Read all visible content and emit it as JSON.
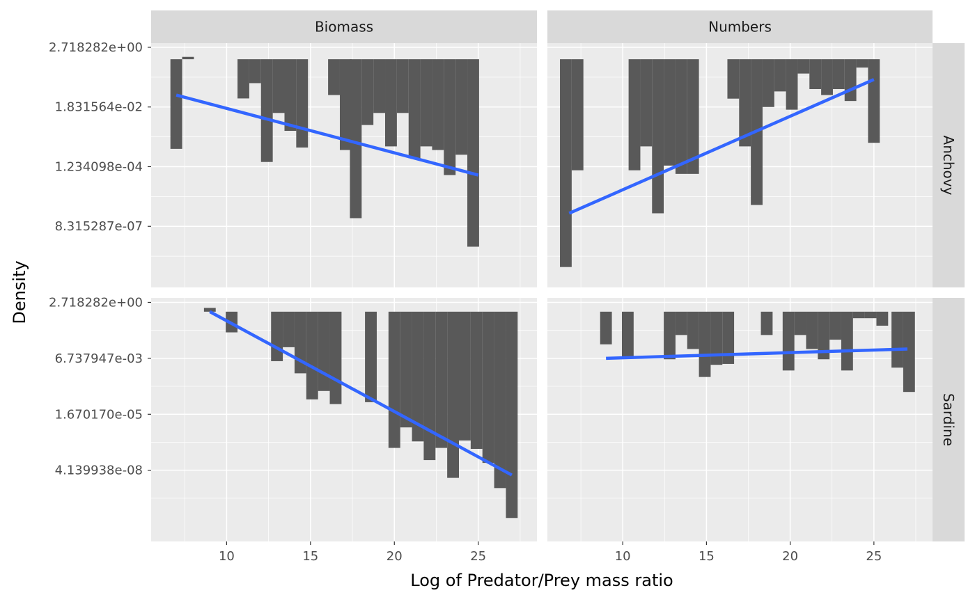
{
  "colors": {
    "panel_bg": "#ebebeb",
    "strip_bg": "#d9d9d9",
    "grid_major": "#ffffff",
    "bar": "#595959",
    "fit_line": "#3366ff",
    "tick": "#333333"
  },
  "chart_data": {
    "type": "bar",
    "layout": "facet_grid",
    "xlabel": "Log of Predator/Prey mass ratio",
    "ylabel": "Density",
    "y_scale": "log",
    "x_ticks": [
      10,
      15,
      20,
      25
    ],
    "x_tick_labels": [
      "10",
      "15",
      "20",
      "25"
    ],
    "xlim": [
      5.5,
      28.5
    ],
    "column_facets": [
      "Biomass",
      "Numbers"
    ],
    "row_facets": [
      "Anchovy",
      "Sardine"
    ],
    "bar_width": 0.7,
    "bar_baseline": 1,
    "panels": [
      {
        "column": "Biomass",
        "row": "Anchovy",
        "y_ticks": [
          2.718282,
          0.01831564,
          0.0001234098,
          8.315287e-07
        ],
        "y_tick_labels": [
          "2.718282e+00",
          "1.831564e-02",
          "1.234098e-04",
          "8.315287e-07"
        ],
        "ylim": [
          4.98e-09,
          3.85
        ],
        "bars": [
          {
            "x": 7.0,
            "y": 0.000549
          },
          {
            "x": 7.7,
            "y": 1.22
          },
          {
            "x": 11.0,
            "y": 0.0375
          },
          {
            "x": 11.7,
            "y": 0.135
          },
          {
            "x": 12.4,
            "y": 0.000183
          },
          {
            "x": 13.1,
            "y": 0.0111
          },
          {
            "x": 13.8,
            "y": 0.00248
          },
          {
            "x": 14.5,
            "y": 0.000614
          },
          {
            "x": 16.4,
            "y": 0.0498
          },
          {
            "x": 17.1,
            "y": 0.000498
          },
          {
            "x": 17.7,
            "y": 1.65e-06
          },
          {
            "x": 18.4,
            "y": 0.00404
          },
          {
            "x": 19.1,
            "y": 0.0111
          },
          {
            "x": 19.8,
            "y": 0.000674
          },
          {
            "x": 20.5,
            "y": 0.0111
          },
          {
            "x": 21.2,
            "y": 0.000248
          },
          {
            "x": 21.9,
            "y": 0.000674
          },
          {
            "x": 22.6,
            "y": 0.000498
          },
          {
            "x": 23.3,
            "y": 6.11e-05
          },
          {
            "x": 24.0,
            "y": 0.000335
          },
          {
            "x": 24.7,
            "y": 1.51e-07
          }
        ],
        "fit": [
          [
            7.0,
            0.0498
          ],
          [
            25.0,
            6.11e-05
          ]
        ]
      },
      {
        "column": "Numbers",
        "row": "Anchovy",
        "y_ticks": [
          2.718282,
          0.01831564,
          0.0001234098,
          8.315287e-07
        ],
        "y_tick_labels": [
          "2.718282e+00",
          "1.831564e-02",
          "1.234098e-04",
          "8.315287e-07"
        ],
        "ylim": [
          4.98e-09,
          3.85
        ],
        "bars": [
          {
            "x": 6.6,
            "y": 2.75e-08
          },
          {
            "x": 7.3,
            "y": 9.12e-05
          },
          {
            "x": 10.7,
            "y": 9.12e-05
          },
          {
            "x": 11.4,
            "y": 0.000674
          },
          {
            "x": 12.1,
            "y": 2.48e-06
          },
          {
            "x": 12.8,
            "y": 0.000135
          },
          {
            "x": 13.5,
            "y": 6.74e-05
          },
          {
            "x": 14.2,
            "y": 6.74e-05
          },
          {
            "x": 16.6,
            "y": 0.0369
          },
          {
            "x": 17.3,
            "y": 0.000674
          },
          {
            "x": 18.0,
            "y": 4.98e-06
          },
          {
            "x": 18.7,
            "y": 0.0183
          },
          {
            "x": 19.4,
            "y": 0.0674
          },
          {
            "x": 20.1,
            "y": 0.0146
          },
          {
            "x": 20.8,
            "y": 0.302
          },
          {
            "x": 21.5,
            "y": 0.0821
          },
          {
            "x": 22.2,
            "y": 0.0498
          },
          {
            "x": 22.9,
            "y": 0.0821
          },
          {
            "x": 23.6,
            "y": 0.0302
          },
          {
            "x": 24.3,
            "y": 0.498
          },
          {
            "x": 25.0,
            "y": 0.000912
          }
        ],
        "fit": [
          [
            6.8,
            2.48e-06
          ],
          [
            25.0,
            0.183
          ]
        ]
      },
      {
        "column": "Biomass",
        "row": "Sardine",
        "y_ticks": [
          2.718282,
          0.006737947,
          1.67017e-05,
          4.139938e-08
        ],
        "y_tick_labels": [
          "2.718282e+00",
          "6.737947e-03",
          "1.670170e-05",
          "4.139938e-08"
        ],
        "ylim": [
          2e-11,
          4.4
        ],
        "bars": [
          {
            "x": 9.0,
            "y": 1.5
          },
          {
            "x": 10.3,
            "y": 0.109
          },
          {
            "x": 13.0,
            "y": 0.00496
          },
          {
            "x": 13.7,
            "y": 0.0222
          },
          {
            "x": 14.4,
            "y": 0.00135
          },
          {
            "x": 15.1,
            "y": 8.24e-05
          },
          {
            "x": 15.8,
            "y": 0.000203
          },
          {
            "x": 16.5,
            "y": 4.98e-05
          },
          {
            "x": 18.6,
            "y": 6.11e-05
          },
          {
            "x": 20.0,
            "y": 4.54e-07
          },
          {
            "x": 20.7,
            "y": 4.09e-06
          },
          {
            "x": 21.4,
            "y": 9.12e-07
          },
          {
            "x": 22.1,
            "y": 1.23e-07
          },
          {
            "x": 22.8,
            "y": 4.54e-07
          },
          {
            "x": 23.5,
            "y": 1.83e-08
          },
          {
            "x": 24.2,
            "y": 1.01e-06
          },
          {
            "x": 24.9,
            "y": 4.09e-07
          },
          {
            "x": 25.6,
            "y": 9.12e-08
          },
          {
            "x": 26.3,
            "y": 6.11e-09
          },
          {
            "x": 27.0,
            "y": 2.48e-10
          }
        ],
        "fit": [
          [
            9.0,
            1.0
          ],
          [
            27.0,
            2.48e-08
          ]
        ]
      },
      {
        "column": "Numbers",
        "row": "Sardine",
        "y_ticks": [
          2.718282,
          0.006737947,
          1.67017e-05,
          4.139938e-08
        ],
        "y_tick_labels": [
          "2.718282e+00",
          "6.737947e-03",
          "1.670170e-05",
          "4.139938e-08"
        ],
        "ylim": [
          2e-11,
          4.4
        ],
        "bars": [
          {
            "x": 9.0,
            "y": 0.0302
          },
          {
            "x": 10.3,
            "y": 0.00674
          },
          {
            "x": 12.8,
            "y": 0.00608
          },
          {
            "x": 13.5,
            "y": 0.0821
          },
          {
            "x": 14.2,
            "y": 0.0183
          },
          {
            "x": 14.9,
            "y": 0.000912
          },
          {
            "x": 15.6,
            "y": 0.00335
          },
          {
            "x": 16.3,
            "y": 0.00369
          },
          {
            "x": 18.6,
            "y": 0.0821
          },
          {
            "x": 19.9,
            "y": 0.00183
          },
          {
            "x": 20.6,
            "y": 0.0821
          },
          {
            "x": 21.3,
            "y": 0.0183
          },
          {
            "x": 22.0,
            "y": 0.00608
          },
          {
            "x": 22.7,
            "y": 0.0498
          },
          {
            "x": 23.4,
            "y": 0.00183
          },
          {
            "x": 24.1,
            "y": 0.498
          },
          {
            "x": 24.8,
            "y": 0.498
          },
          {
            "x": 25.5,
            "y": 0.223
          },
          {
            "x": 26.4,
            "y": 0.00248
          },
          {
            "x": 27.1,
            "y": 0.000183
          }
        ],
        "fit": [
          [
            9.0,
            0.00674
          ],
          [
            27.0,
            0.0183
          ]
        ]
      }
    ]
  }
}
